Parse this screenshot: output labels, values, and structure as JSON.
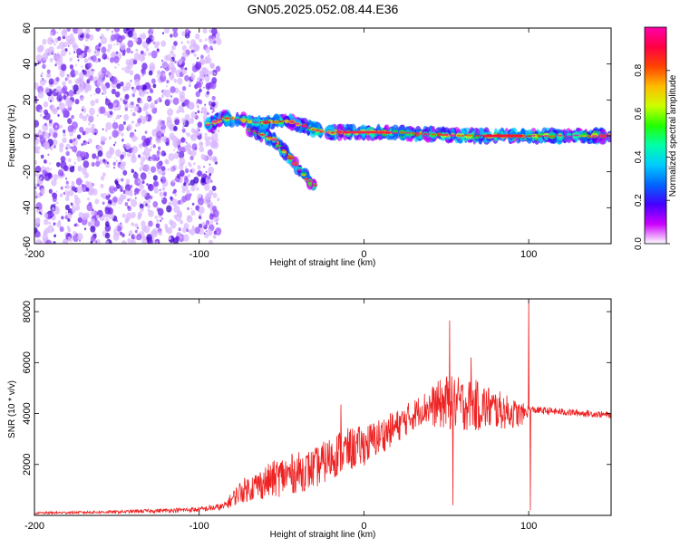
{
  "chart_data": [
    {
      "type": "heatmap",
      "title": "GN05.2025.052.08.44.E36",
      "xlabel": "Height of straight line (km)",
      "ylabel": "Frequency (Hz)",
      "xlim": [
        -200,
        150
      ],
      "ylim": [
        -60,
        60
      ],
      "x_ticks": [
        -200,
        -100,
        0,
        100
      ],
      "y_ticks": [
        -60,
        -40,
        -20,
        0,
        20,
        40,
        60
      ],
      "colorbar": {
        "label": "Normalized spectral amplitude",
        "range": [
          0,
          1
        ],
        "ticks": [
          "0.0",
          "0.2",
          "0.4",
          "0.6",
          "0.8"
        ],
        "tick_values": [
          0,
          0.2,
          0.4,
          0.6,
          0.8
        ],
        "colors": [
          "#ffffff",
          "#cc00ff",
          "#4400ff",
          "#0066ff",
          "#00ccff",
          "#00ffaa",
          "#22ff00",
          "#ccff00",
          "#ffbb00",
          "#ff4400",
          "#ff0044",
          "#ff00aa"
        ]
      },
      "noise_region": {
        "x": [
          -200,
          -88
        ],
        "y": [
          -60,
          60
        ]
      },
      "main_track": [
        [
          -95,
          6
        ],
        [
          -85,
          10
        ],
        [
          -75,
          9
        ],
        [
          -65,
          7
        ],
        [
          -55,
          8
        ],
        [
          -45,
          8
        ],
        [
          -35,
          5
        ],
        [
          -25,
          2
        ],
        [
          -10,
          2
        ],
        [
          10,
          2
        ],
        [
          40,
          1
        ],
        [
          70,
          0
        ],
        [
          95,
          0
        ],
        [
          150,
          0
        ]
      ],
      "branch_track": [
        [
          -70,
          4
        ],
        [
          -55,
          -2
        ],
        [
          -45,
          -12
        ],
        [
          -40,
          -18
        ],
        [
          -30,
          -28
        ]
      ]
    },
    {
      "type": "line",
      "xlabel": "Height of straight line (km)",
      "ylabel": "SNR (10 * v/v)",
      "xlim": [
        -200,
        150
      ],
      "ylim": [
        0,
        8500
      ],
      "x_ticks": [
        -200,
        -100,
        0,
        100
      ],
      "y_ticks": [
        2000,
        4000,
        6000,
        8000
      ],
      "color": "#ee2222",
      "envelope": [
        {
          "x": -200,
          "base": 80,
          "spread": 80
        },
        {
          "x": -150,
          "base": 120,
          "spread": 120
        },
        {
          "x": -100,
          "base": 200,
          "spread": 200
        },
        {
          "x": -85,
          "base": 300,
          "spread": 300
        },
        {
          "x": -75,
          "base": 800,
          "spread": 900
        },
        {
          "x": -50,
          "base": 1300,
          "spread": 1600
        },
        {
          "x": -30,
          "base": 1600,
          "spread": 1600
        },
        {
          "x": -15,
          "base": 2200,
          "spread": 1800
        },
        {
          "x": 0,
          "base": 2500,
          "spread": 1600
        },
        {
          "x": 20,
          "base": 3300,
          "spread": 1300
        },
        {
          "x": 35,
          "base": 4000,
          "spread": 1200
        },
        {
          "x": 50,
          "base": 4100,
          "spread": 2200
        },
        {
          "x": 70,
          "base": 4000,
          "spread": 2000
        },
        {
          "x": 95,
          "base": 3800,
          "spread": 1000
        },
        {
          "x": 101,
          "base": 4100,
          "spread": 300
        },
        {
          "x": 150,
          "base": 3900,
          "spread": 250
        }
      ],
      "peaks": [
        {
          "x": -14,
          "y": 4350
        },
        {
          "x": 52,
          "y": 7650
        },
        {
          "x": 65,
          "y": 6200
        },
        {
          "x": 100,
          "y": 8450
        },
        {
          "x": 101,
          "y": 200
        },
        {
          "x": 54,
          "y": 400
        }
      ]
    }
  ]
}
